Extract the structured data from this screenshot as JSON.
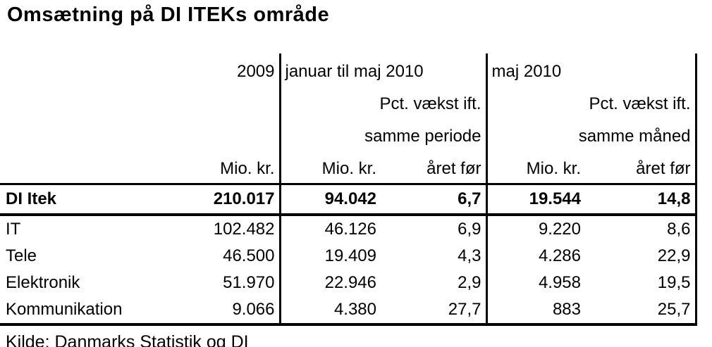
{
  "title": "Omsætning på DI ITEKs område",
  "source": "Kilde: Danmarks Statistik og DI",
  "colors": {
    "text": "#000000",
    "background": "#ffffff",
    "border": "#000000"
  },
  "table": {
    "groups": {
      "y2009": "2009",
      "jan_maj": "januar til maj 2010",
      "maj": "maj 2010"
    },
    "subheaders": {
      "pct_vaekst": "Pct. vækst ift.",
      "samme_periode": "samme periode",
      "samme_maaned": "samme måned",
      "mio_kr": "Mio. kr.",
      "aaret_foer": "året før"
    },
    "rows": [
      {
        "label": "DI Itek",
        "y2009_mio": "210.017",
        "jan_maj_mio": "94.042",
        "jan_maj_vaekst": "6,7",
        "maj_mio": "19.544",
        "maj_vaekst": "14,8"
      },
      {
        "label": "IT",
        "y2009_mio": "102.482",
        "jan_maj_mio": "46.126",
        "jan_maj_vaekst": "6,9",
        "maj_mio": "9.220",
        "maj_vaekst": "8,6"
      },
      {
        "label": "Tele",
        "y2009_mio": "46.500",
        "jan_maj_mio": "19.409",
        "jan_maj_vaekst": "4,3",
        "maj_mio": "4.286",
        "maj_vaekst": "22,9"
      },
      {
        "label": "Elektronik",
        "y2009_mio": "51.970",
        "jan_maj_mio": "22.946",
        "jan_maj_vaekst": "2,9",
        "maj_mio": "4.958",
        "maj_vaekst": "19,5"
      },
      {
        "label": "Kommunikation",
        "y2009_mio": "9.066",
        "jan_maj_mio": "4.380",
        "jan_maj_vaekst": "27,7",
        "maj_mio": "883",
        "maj_vaekst": "25,7"
      }
    ]
  }
}
